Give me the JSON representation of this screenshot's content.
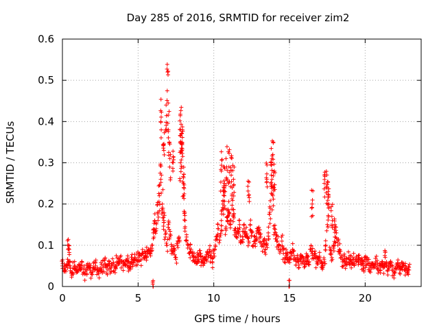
{
  "chart_data": {
    "type": "scatter",
    "title": "Day 285 of 2016, SRMTID for receiver zim2",
    "xlabel": "GPS time / hours",
    "ylabel": "SRMTID / TECUs",
    "xlim": [
      0,
      23.7
    ],
    "ylim": [
      0,
      0.6
    ],
    "xticks": [
      0,
      5,
      10,
      15,
      20
    ],
    "xtick_labels": [
      "0",
      "5",
      "10",
      "15",
      "20"
    ],
    "yticks": [
      0,
      0.1,
      0.2,
      0.3,
      0.4,
      0.5,
      0.6
    ],
    "ytick_labels": [
      "0",
      "0.1",
      "0.2",
      "0.3",
      "0.4",
      "0.5",
      "0.6"
    ],
    "grid": true,
    "marker": "+",
    "color": "#ff0000",
    "series": [
      {
        "name": "SRMTID",
        "x": [
          0.0,
          0.1,
          0.2,
          0.3,
          0.4,
          0.5,
          0.6,
          0.7,
          0.8,
          0.9,
          1.0,
          1.1,
          1.2,
          1.3,
          1.4,
          1.5,
          1.6,
          1.7,
          1.8,
          1.9,
          2.0,
          2.1,
          2.2,
          2.3,
          2.4,
          2.5,
          2.6,
          2.7,
          2.8,
          2.9,
          3.0,
          3.1,
          3.2,
          3.3,
          3.4,
          3.5,
          3.6,
          3.7,
          3.8,
          3.9,
          4.0,
          4.1,
          4.2,
          4.3,
          4.4,
          4.5,
          4.6,
          4.7,
          4.8,
          4.9,
          5.0,
          5.1,
          5.2,
          5.3,
          5.4,
          5.5,
          5.6,
          5.7,
          5.8,
          5.9,
          6.0,
          6.1,
          6.2,
          6.3,
          6.4,
          6.5,
          6.6,
          6.7,
          6.8,
          6.9,
          7.0,
          7.1,
          7.2,
          7.3,
          7.4,
          7.5,
          7.6,
          7.7,
          7.8,
          7.9,
          8.0,
          8.1,
          8.2,
          8.3,
          8.4,
          8.5,
          8.6,
          8.7,
          8.8,
          8.9,
          9.0,
          9.1,
          9.2,
          9.3,
          9.4,
          9.5,
          9.6,
          9.7,
          9.8,
          9.9,
          10.0,
          10.1,
          10.2,
          10.3,
          10.4,
          10.5,
          10.6,
          10.7,
          10.8,
          10.9,
          11.0,
          11.1,
          11.2,
          11.3,
          11.4,
          11.5,
          11.6,
          11.7,
          11.8,
          11.9,
          12.0,
          12.1,
          12.2,
          12.3,
          12.4,
          12.5,
          12.6,
          12.7,
          12.8,
          12.9,
          13.0,
          13.1,
          13.2,
          13.3,
          13.4,
          13.5,
          13.6,
          13.7,
          13.8,
          13.9,
          14.0,
          14.1,
          14.2,
          14.3,
          14.4,
          14.5,
          14.6,
          14.7,
          14.8,
          14.9,
          15.0,
          15.1,
          15.2,
          15.3,
          15.4,
          15.5,
          15.6,
          15.7,
          15.8,
          15.9,
          16.0,
          16.1,
          16.2,
          16.3,
          16.4,
          16.5,
          16.6,
          16.7,
          16.8,
          16.9,
          17.0,
          17.1,
          17.2,
          17.3,
          17.4,
          17.5,
          17.6,
          17.7,
          17.8,
          17.9,
          18.0,
          18.1,
          18.2,
          18.3,
          18.4,
          18.5,
          18.6,
          18.7,
          18.8,
          18.9,
          19.0,
          19.1,
          19.2,
          19.3,
          19.4,
          19.5,
          19.6,
          19.7,
          19.8,
          19.9,
          20.0,
          20.1,
          20.2,
          20.3,
          20.4,
          20.5,
          20.6,
          20.7,
          20.8,
          20.9,
          21.0,
          21.1,
          21.2,
          21.3,
          21.4,
          21.5,
          21.6,
          21.7,
          21.8,
          21.9,
          22.0,
          22.1,
          22.2,
          22.3,
          22.4,
          22.5,
          22.6,
          22.7,
          22.8,
          22.9,
          6.5,
          6.7,
          6.85,
          6.95,
          7.0,
          7.1,
          7.3,
          7.8,
          7.85,
          7.9,
          8.0,
          10.5,
          10.7,
          10.85,
          11.0,
          11.15,
          11.3,
          12.3,
          13.5,
          13.8,
          13.9,
          14.0,
          16.5,
          17.3,
          17.45,
          17.55,
          17.8,
          18.0,
          0.35,
          0.45,
          21.3,
          6.0,
          15.0
        ],
        "y": [
          0.05,
          0.045,
          0.04,
          0.055,
          0.06,
          0.05,
          0.035,
          0.045,
          0.05,
          0.04,
          0.035,
          0.045,
          0.04,
          0.05,
          0.035,
          0.03,
          0.04,
          0.05,
          0.045,
          0.035,
          0.04,
          0.045,
          0.05,
          0.04,
          0.035,
          0.045,
          0.04,
          0.05,
          0.055,
          0.045,
          0.04,
          0.05,
          0.045,
          0.055,
          0.05,
          0.045,
          0.06,
          0.055,
          0.065,
          0.06,
          0.05,
          0.055,
          0.065,
          0.06,
          0.05,
          0.055,
          0.065,
          0.06,
          0.07,
          0.065,
          0.07,
          0.075,
          0.065,
          0.08,
          0.07,
          0.075,
          0.085,
          0.09,
          0.08,
          0.1,
          0.13,
          0.16,
          0.14,
          0.18,
          0.22,
          0.26,
          0.2,
          0.16,
          0.12,
          0.1,
          0.15,
          0.12,
          0.09,
          0.08,
          0.09,
          0.07,
          0.1,
          0.12,
          0.3,
          0.35,
          0.22,
          0.16,
          0.12,
          0.1,
          0.08,
          0.09,
          0.075,
          0.07,
          0.065,
          0.07,
          0.075,
          0.08,
          0.065,
          0.06,
          0.07,
          0.065,
          0.08,
          0.09,
          0.07,
          0.06,
          0.08,
          0.1,
          0.12,
          0.14,
          0.12,
          0.16,
          0.2,
          0.22,
          0.14,
          0.16,
          0.18,
          0.15,
          0.22,
          0.17,
          0.14,
          0.12,
          0.13,
          0.15,
          0.11,
          0.12,
          0.14,
          0.13,
          0.12,
          0.11,
          0.15,
          0.13,
          0.1,
          0.11,
          0.12,
          0.14,
          0.13,
          0.12,
          0.1,
          0.11,
          0.09,
          0.1,
          0.13,
          0.18,
          0.27,
          0.22,
          0.14,
          0.13,
          0.11,
          0.1,
          0.09,
          0.11,
          0.08,
          0.07,
          0.075,
          0.065,
          0.07,
          0.08,
          0.09,
          0.075,
          0.065,
          0.07,
          0.06,
          0.065,
          0.07,
          0.06,
          0.055,
          0.07,
          0.065,
          0.06,
          0.09,
          0.08,
          0.07,
          0.075,
          0.06,
          0.065,
          0.07,
          0.06,
          0.05,
          0.06,
          0.1,
          0.15,
          0.2,
          0.09,
          0.07,
          0.1,
          0.12,
          0.13,
          0.1,
          0.09,
          0.07,
          0.06,
          0.065,
          0.055,
          0.06,
          0.07,
          0.065,
          0.06,
          0.07,
          0.055,
          0.06,
          0.065,
          0.07,
          0.06,
          0.055,
          0.05,
          0.06,
          0.065,
          0.055,
          0.05,
          0.045,
          0.055,
          0.05,
          0.06,
          0.05,
          0.045,
          0.04,
          0.05,
          0.045,
          0.055,
          0.05,
          0.04,
          0.045,
          0.05,
          0.04,
          0.035,
          0.045,
          0.05,
          0.055,
          0.04,
          0.045,
          0.05,
          0.04,
          0.045,
          0.035,
          0.04,
          0.4,
          0.33,
          0.44,
          0.52,
          0.38,
          0.31,
          0.28,
          0.38,
          0.37,
          0.33,
          0.25,
          0.28,
          0.25,
          0.29,
          0.29,
          0.27,
          0.26,
          0.22,
          0.26,
          0.3,
          0.32,
          0.28,
          0.2,
          0.25,
          0.24,
          0.23,
          0.17,
          0.15,
          0.1,
          0.09,
          0.075,
          0.0,
          0.0
        ]
      }
    ]
  },
  "labels": {
    "title": "Day 285 of 2016, SRMTID for receiver zim2",
    "xlabel": "GPS time / hours",
    "ylabel": "SRMTID / TECUs"
  }
}
